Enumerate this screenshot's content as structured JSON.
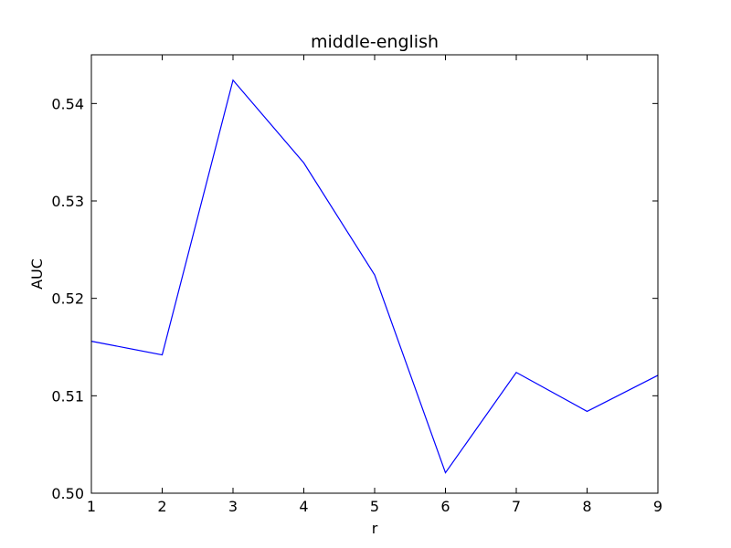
{
  "chart_data": {
    "type": "line",
    "title": "middle-english",
    "xlabel": "r",
    "ylabel": "AUC",
    "xlim": [
      1,
      9
    ],
    "ylim": [
      0.5,
      0.545
    ],
    "x_ticks": [
      1,
      2,
      3,
      4,
      5,
      6,
      7,
      8,
      9
    ],
    "y_ticks": [
      0.5,
      0.51,
      0.52,
      0.53,
      0.54
    ],
    "x_tick_labels": [
      "1",
      "2",
      "3",
      "4",
      "5",
      "6",
      "7",
      "8",
      "9"
    ],
    "y_tick_labels": [
      "0.50",
      "0.51",
      "0.52",
      "0.53",
      "0.54"
    ],
    "grid": false,
    "series": [
      {
        "color": "#0000ff",
        "x": [
          1,
          2,
          3,
          4,
          5,
          6,
          7,
          8,
          9
        ],
        "values": [
          0.5156,
          0.5142,
          0.5424,
          0.5339,
          0.5224,
          0.5021,
          0.5124,
          0.5084,
          0.5121
        ]
      }
    ]
  }
}
